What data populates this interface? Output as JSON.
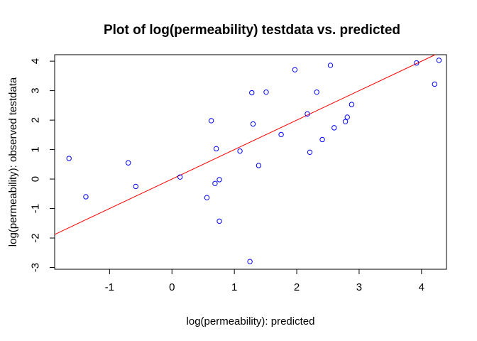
{
  "chart_data": {
    "type": "scatter",
    "title": "Plot of log(permeability) testdata vs. predicted",
    "xlabel": "log(permeability): predicted",
    "ylabel": "log(permeability): observed testdata",
    "xlim": [
      -1.88,
      4.4
    ],
    "ylim": [
      -3.06,
      4.22
    ],
    "x_ticks": [
      -1,
      0,
      1,
      2,
      3,
      4
    ],
    "y_ticks": [
      -3,
      -2,
      -1,
      0,
      1,
      2,
      3,
      4
    ],
    "grid": false,
    "point_color": "#0000ff",
    "line_color": "#ff0000",
    "reference_line": {
      "slope": 1,
      "intercept": 0
    },
    "points": [
      {
        "x": -1.65,
        "y": 0.7
      },
      {
        "x": -1.38,
        "y": -0.6
      },
      {
        "x": -0.7,
        "y": 0.55
      },
      {
        "x": -0.58,
        "y": -0.25
      },
      {
        "x": 0.13,
        "y": 0.07
      },
      {
        "x": 0.56,
        "y": -0.63
      },
      {
        "x": 0.63,
        "y": 1.98
      },
      {
        "x": 0.69,
        "y": -0.15
      },
      {
        "x": 0.71,
        "y": 1.03
      },
      {
        "x": 0.76,
        "y": -0.02
      },
      {
        "x": 0.76,
        "y": -1.43
      },
      {
        "x": 1.09,
        "y": 0.95
      },
      {
        "x": 1.25,
        "y": -2.8
      },
      {
        "x": 1.28,
        "y": 2.93
      },
      {
        "x": 1.3,
        "y": 1.87
      },
      {
        "x": 1.39,
        "y": 0.46
      },
      {
        "x": 1.51,
        "y": 2.95
      },
      {
        "x": 1.75,
        "y": 1.51
      },
      {
        "x": 1.97,
        "y": 3.71
      },
      {
        "x": 2.17,
        "y": 2.21
      },
      {
        "x": 2.21,
        "y": 0.91
      },
      {
        "x": 2.32,
        "y": 2.95
      },
      {
        "x": 2.41,
        "y": 1.34
      },
      {
        "x": 2.54,
        "y": 3.86
      },
      {
        "x": 2.6,
        "y": 1.74
      },
      {
        "x": 2.78,
        "y": 1.95
      },
      {
        "x": 2.81,
        "y": 2.1
      },
      {
        "x": 2.88,
        "y": 2.53
      },
      {
        "x": 3.92,
        "y": 3.94
      },
      {
        "x": 4.21,
        "y": 3.22
      },
      {
        "x": 4.28,
        "y": 4.03
      }
    ]
  }
}
